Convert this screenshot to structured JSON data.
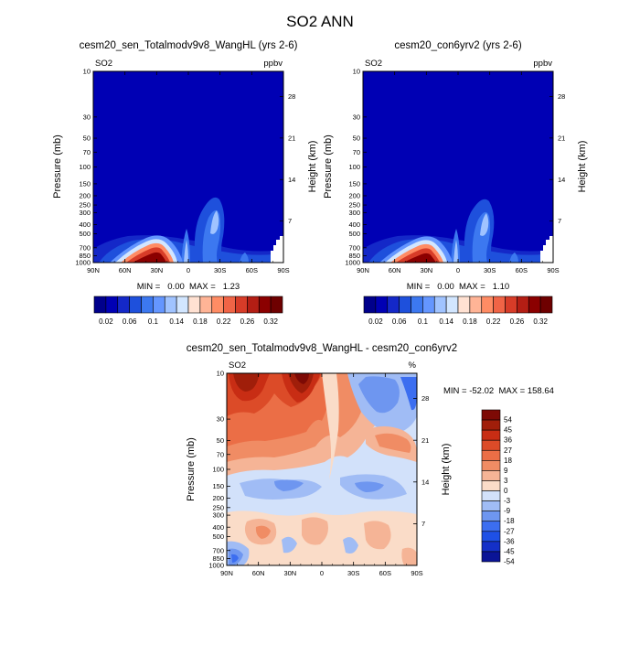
{
  "title": "SO2 ANN",
  "colors": {
    "so2_palette": [
      "#00008b",
      "#0000b4",
      "#1428c8",
      "#1e50dc",
      "#3c78f0",
      "#6496ff",
      "#a0c3ff",
      "#d2e6ff",
      "#ffe1d2",
      "#ffb496",
      "#ff8c64",
      "#f06446",
      "#d73c28",
      "#b41e14",
      "#8b0000",
      "#6e0000"
    ],
    "diff_palette": [
      "#0a1496",
      "#1430c8",
      "#1e50e6",
      "#3c6ef0",
      "#6e96f0",
      "#a0bcf5",
      "#d2e1fa",
      "#fadcc8",
      "#f5b496",
      "#f08c64",
      "#eb6e46",
      "#dc4b28",
      "#c82d14",
      "#a01e0a",
      "#7d0a05"
    ]
  },
  "chart_data": [
    {
      "type": "heatmap",
      "title": "cesm20_sen_Totalmodv9v8_WangHL (yrs 2-6)",
      "left_label": "SO2",
      "right_label": "ppbv",
      "xlabel": "",
      "ylabel": "Pressure (mb)",
      "y2label": "Height (km)",
      "x_ticks": [
        "90N",
        "60N",
        "30N",
        "0",
        "30S",
        "60S",
        "90S"
      ],
      "y_ticks": [
        10,
        30,
        50,
        70,
        100,
        150,
        200,
        250,
        300,
        400,
        500,
        700,
        850,
        1000
      ],
      "y2_ticks": [
        28,
        21,
        14,
        7
      ],
      "stats": "MIN =   0.00  MAX =   1.23",
      "min": 0.0,
      "max": 1.23,
      "colorbar": {
        "labels": [
          "0.02",
          "0.06",
          "0.1",
          "0.14",
          "0.18",
          "0.22",
          "0.26",
          "0.32"
        ]
      }
    },
    {
      "type": "heatmap",
      "title": "cesm20_con6yrv2 (yrs 2-6)",
      "left_label": "SO2",
      "right_label": "ppbv",
      "xlabel": "",
      "ylabel": "Pressure (mb)",
      "y2label": "Height (km)",
      "x_ticks": [
        "90N",
        "60N",
        "30N",
        "0",
        "30S",
        "60S",
        "90S"
      ],
      "y_ticks": [
        10,
        30,
        50,
        70,
        100,
        150,
        200,
        250,
        300,
        400,
        500,
        700,
        850,
        1000
      ],
      "y2_ticks": [
        28,
        21,
        14,
        7
      ],
      "stats": "MIN =   0.00  MAX =   1.10",
      "min": 0.0,
      "max": 1.1,
      "colorbar": {
        "labels": [
          "0.02",
          "0.06",
          "0.1",
          "0.14",
          "0.18",
          "0.22",
          "0.26",
          "0.32"
        ]
      }
    },
    {
      "type": "heatmap",
      "title": "cesm20_sen_Totalmodv9v8_WangHL - cesm20_con6yrv2",
      "left_label": "SO2",
      "right_label": "%",
      "xlabel": "",
      "ylabel": "Pressure (mb)",
      "y2label": "Height (km)",
      "x_ticks": [
        "90N",
        "60N",
        "30N",
        "0",
        "30S",
        "60S",
        "90S"
      ],
      "y_ticks": [
        10,
        30,
        50,
        70,
        100,
        150,
        200,
        250,
        300,
        400,
        500,
        700,
        850,
        1000
      ],
      "y2_ticks": [
        28,
        21,
        14,
        7
      ],
      "stats": "MIN = -52.02  MAX = 158.64",
      "min": -52.02,
      "max": 158.64,
      "colorbar": {
        "labels": [
          "54",
          "45",
          "36",
          "27",
          "18",
          "9",
          "3",
          "0",
          "-3",
          "-9",
          "-18",
          "-27",
          "-36",
          "-45",
          "-54"
        ]
      }
    }
  ]
}
